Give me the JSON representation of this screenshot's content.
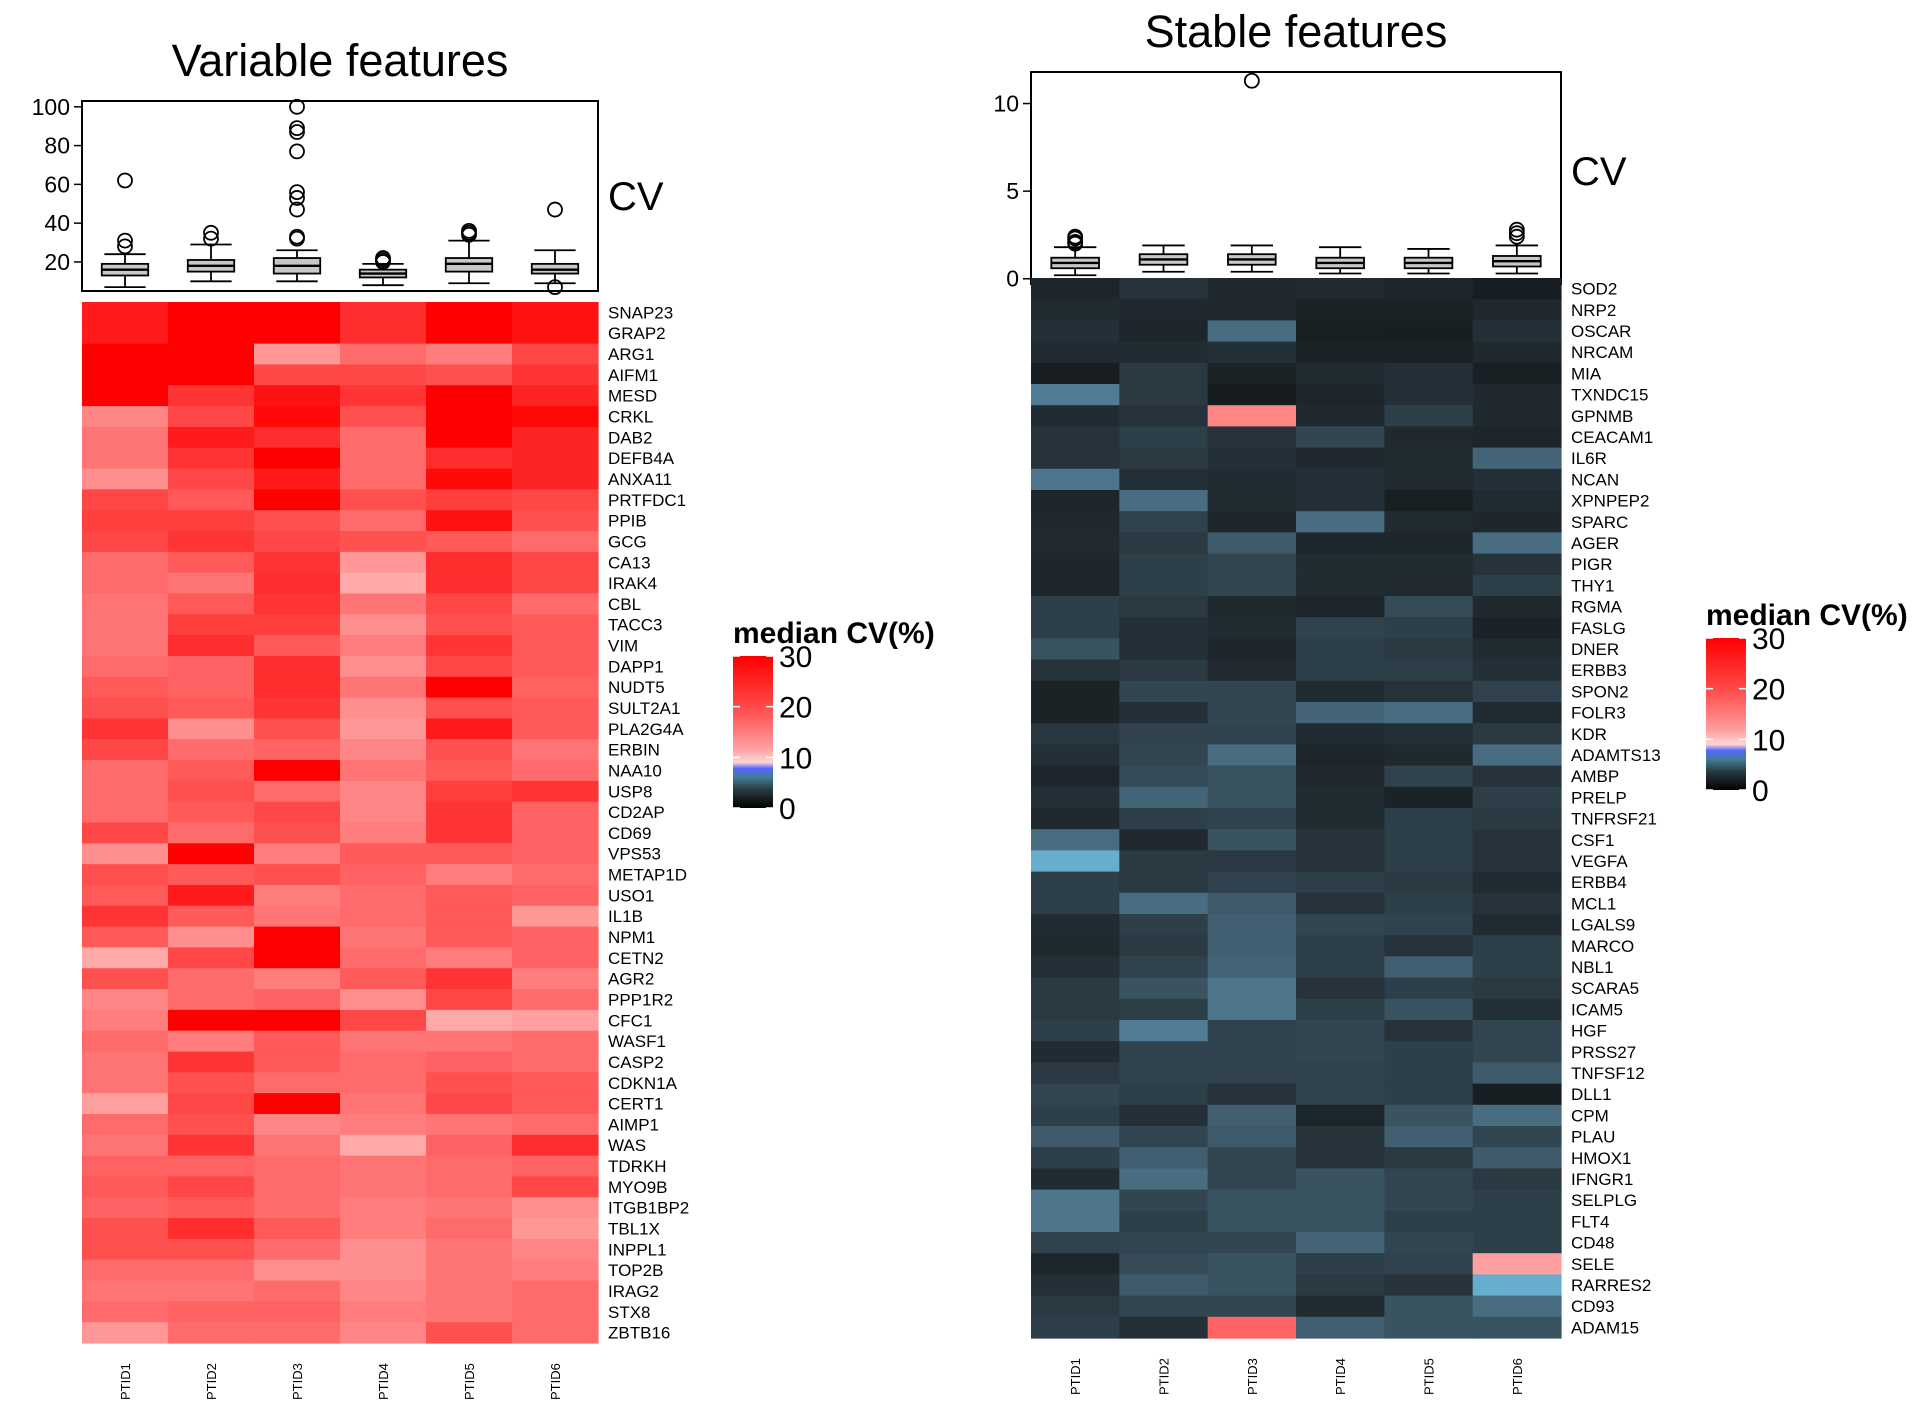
{
  "chart_data": [
    {
      "type": "heatmap",
      "title": "Variable features",
      "boxplot_label": "CV",
      "boxplot_yticks": [
        20,
        40,
        60,
        80,
        100
      ],
      "boxplot_ylim": [
        5,
        103
      ],
      "columns": [
        "PTID1",
        "PTID2",
        "PTID3",
        "PTID4",
        "PTID5",
        "PTID6"
      ],
      "rows": [
        "SNAP23",
        "GRAP2",
        "ARG1",
        "AIFM1",
        "MESD",
        "CRKL",
        "DAB2",
        "DEFB4A",
        "ANXA11",
        "PRTFDC1",
        "PPIB",
        "GCG",
        "CA13",
        "IRAK4",
        "CBL",
        "TACC3",
        "VIM",
        "DAPP1",
        "NUDT5",
        "SULT2A1",
        "PLA2G4A",
        "ERBIN",
        "NAA10",
        "USP8",
        "CD2AP",
        "CD69",
        "VPS53",
        "METAP1D",
        "USO1",
        "IL1B",
        "NPM1",
        "CETN2",
        "AGR2",
        "PPP1R2",
        "CFC1",
        "WASF1",
        "CASP2",
        "CDKN1A",
        "CERT1",
        "AIMP1",
        "WAS",
        "TDRKH",
        "MYO9B",
        "ITGB1BP2",
        "TBL1X",
        "INPPL1",
        "TOP2B",
        "IRAG2",
        "STX8",
        "ZBTB16"
      ],
      "values": [
        [
          27,
          30,
          30,
          25,
          30,
          28
        ],
        [
          27,
          30,
          30,
          25,
          30,
          28
        ],
        [
          30,
          30,
          13,
          18,
          16,
          22
        ],
        [
          30,
          30,
          22,
          22,
          21,
          24
        ],
        [
          30,
          24,
          28,
          24,
          30,
          26
        ],
        [
          15,
          22,
          29,
          21,
          30,
          29
        ],
        [
          17,
          27,
          25,
          18,
          30,
          26
        ],
        [
          17,
          24,
          30,
          18,
          25,
          26
        ],
        [
          14,
          22,
          27,
          18,
          29,
          26
        ],
        [
          22,
          20,
          30,
          21,
          23,
          22
        ],
        [
          23,
          23,
          21,
          18,
          28,
          21
        ],
        [
          22,
          24,
          22,
          21,
          20,
          18
        ],
        [
          18,
          20,
          24,
          13,
          25,
          22
        ],
        [
          18,
          17,
          25,
          11,
          25,
          22
        ],
        [
          17,
          20,
          24,
          17,
          22,
          18
        ],
        [
          17,
          23,
          23,
          14,
          21,
          20
        ],
        [
          17,
          25,
          20,
          16,
          24,
          20
        ],
        [
          18,
          19,
          25,
          14,
          22,
          20
        ],
        [
          20,
          19,
          25,
          17,
          30,
          19
        ],
        [
          21,
          20,
          24,
          14,
          21,
          20
        ],
        [
          24,
          14,
          21,
          13,
          27,
          20
        ],
        [
          22,
          18,
          19,
          15,
          21,
          17
        ],
        [
          18,
          20,
          30,
          17,
          20,
          18
        ],
        [
          18,
          21,
          18,
          15,
          23,
          24
        ],
        [
          18,
          20,
          22,
          15,
          24,
          19
        ],
        [
          22,
          18,
          21,
          16,
          24,
          19
        ],
        [
          14,
          30,
          16,
          20,
          20,
          19
        ],
        [
          21,
          20,
          21,
          19,
          16,
          18
        ],
        [
          20,
          27,
          16,
          18,
          20,
          19
        ],
        [
          24,
          20,
          17,
          18,
          20,
          13
        ],
        [
          20,
          14,
          30,
          17,
          20,
          19
        ],
        [
          11,
          22,
          30,
          18,
          16,
          19
        ],
        [
          21,
          18,
          16,
          20,
          24,
          16
        ],
        [
          15,
          18,
          19,
          14,
          22,
          18
        ],
        [
          16,
          30,
          30,
          22,
          11,
          12
        ],
        [
          18,
          16,
          20,
          17,
          17,
          18
        ],
        [
          17,
          24,
          20,
          18,
          19,
          18
        ],
        [
          17,
          21,
          18,
          18,
          21,
          20
        ],
        [
          12,
          22,
          30,
          17,
          22,
          20
        ],
        [
          18,
          21,
          15,
          16,
          17,
          18
        ],
        [
          17,
          24,
          17,
          11,
          19,
          25
        ],
        [
          19,
          19,
          18,
          17,
          18,
          19
        ],
        [
          20,
          22,
          18,
          17,
          18,
          22
        ],
        [
          19,
          20,
          18,
          16,
          17,
          14
        ],
        [
          21,
          25,
          20,
          16,
          18,
          13
        ],
        [
          21,
          21,
          18,
          14,
          17,
          15
        ],
        [
          18,
          18,
          14,
          14,
          17,
          16
        ],
        [
          17,
          17,
          18,
          15,
          17,
          18
        ],
        [
          18,
          19,
          19,
          16,
          17,
          18
        ],
        [
          13,
          18,
          18,
          15,
          21,
          18
        ]
      ],
      "boxplots": [
        {
          "min": 7,
          "q1": 13,
          "median": 16,
          "q3": 19,
          "max": 24,
          "outliers": [
            62,
            31,
            28
          ]
        },
        {
          "min": 10,
          "q1": 15,
          "median": 18,
          "q3": 21,
          "max": 29,
          "outliers": [
            35,
            32
          ]
        },
        {
          "min": 10,
          "q1": 14,
          "median": 18,
          "q3": 22,
          "max": 26,
          "outliers": [
            100,
            89,
            87,
            77,
            56,
            53,
            47,
            33,
            32
          ]
        },
        {
          "min": 8,
          "q1": 12,
          "median": 14,
          "q3": 16,
          "max": 19,
          "outliers": [
            22,
            21,
            20
          ]
        },
        {
          "min": 9,
          "q1": 15,
          "median": 19,
          "q3": 22,
          "max": 31,
          "outliers": [
            36,
            35,
            34
          ]
        },
        {
          "min": 9,
          "q1": 14,
          "median": 16,
          "q3": 19,
          "max": 26,
          "outliers": [
            47,
            7
          ]
        }
      ],
      "legend": {
        "title": "median CV(%)",
        "ticks": [
          0,
          10,
          20,
          30
        ],
        "placement": "right"
      }
    },
    {
      "type": "heatmap",
      "title": "Stable features",
      "boxplot_label": "CV",
      "boxplot_yticks": [
        0,
        5,
        10
      ],
      "boxplot_ylim": [
        -0.3,
        11.8
      ],
      "columns": [
        "PTID1",
        "PTID2",
        "PTID3",
        "PTID4",
        "PTID5",
        "PTID6"
      ],
      "rows": [
        "SOD2",
        "NRP2",
        "OSCAR",
        "NRCAM",
        "MIA",
        "TXNDC15",
        "GPNMB",
        "CEACAM1",
        "IL6R",
        "NCAN",
        "XPNPEP2",
        "SPARC",
        "AGER",
        "PIGR",
        "THY1",
        "RGMA",
        "FASLG",
        "DNER",
        "ERBB3",
        "SPON2",
        "FOLR3",
        "KDR",
        "ADAMTS13",
        "AMBP",
        "PRELP",
        "TNFRSF21",
        "CSF1",
        "VEGFA",
        "ERBB4",
        "MCL1",
        "LGALS9",
        "MARCO",
        "NBL1",
        "SCARA5",
        "ICAM5",
        "HGF",
        "PRSS27",
        "TNFSF12",
        "DLL1",
        "CPM",
        "PLAU",
        "HMOX1",
        "IFNGR1",
        "SELPLG",
        "FLT4",
        "CD48",
        "SELE",
        "RARRES2",
        "CD93",
        "ADAM15"
      ],
      "values": [
        [
          1.2,
          2.0,
          1.4,
          1.5,
          1.2,
          0.7
        ],
        [
          1.6,
          1.4,
          1.4,
          0.9,
          0.9,
          1.4
        ],
        [
          1.8,
          1.2,
          4.5,
          0.8,
          0.7,
          1.8
        ],
        [
          1.6,
          1.6,
          1.8,
          1.0,
          0.9,
          1.4
        ],
        [
          0.6,
          2.3,
          1.0,
          1.6,
          1.8,
          0.8
        ],
        [
          5.0,
          2.3,
          0.5,
          1.2,
          1.8,
          1.4
        ],
        [
          1.6,
          2.0,
          11.2,
          1.4,
          2.6,
          1.4
        ],
        [
          2.0,
          2.6,
          2.0,
          3.0,
          1.4,
          1.2
        ],
        [
          2.0,
          2.3,
          1.8,
          1.4,
          1.6,
          4.2
        ],
        [
          4.8,
          1.8,
          1.6,
          1.8,
          1.5,
          1.8
        ],
        [
          1.2,
          4.5,
          1.6,
          1.8,
          0.8,
          1.6
        ],
        [
          1.4,
          2.8,
          1.2,
          4.5,
          1.6,
          1.3
        ],
        [
          1.5,
          2.3,
          3.8,
          1.2,
          1.2,
          4.5
        ],
        [
          1.3,
          2.6,
          3.0,
          1.6,
          1.6,
          2.0
        ],
        [
          1.2,
          2.6,
          3.0,
          1.6,
          1.5,
          2.6
        ],
        [
          2.6,
          2.3,
          1.4,
          1.2,
          3.2,
          1.4
        ],
        [
          2.6,
          1.8,
          1.6,
          2.8,
          2.6,
          1.0
        ],
        [
          3.5,
          1.8,
          1.3,
          2.6,
          2.3,
          1.6
        ],
        [
          2.0,
          2.3,
          1.5,
          2.6,
          2.6,
          1.8
        ],
        [
          1.0,
          3.0,
          3.0,
          1.6,
          2.0,
          2.8
        ],
        [
          1.0,
          1.8,
          3.0,
          4.2,
          4.5,
          1.6
        ],
        [
          2.2,
          2.8,
          2.8,
          1.6,
          1.8,
          2.3
        ],
        [
          1.8,
          3.0,
          4.5,
          1.2,
          1.4,
          4.5
        ],
        [
          1.2,
          3.2,
          3.5,
          1.4,
          2.8,
          2.0
        ],
        [
          1.8,
          4.2,
          3.5,
          1.6,
          1.0,
          2.6
        ],
        [
          1.4,
          2.6,
          2.8,
          1.6,
          2.6,
          2.3
        ],
        [
          4.5,
          1.4,
          3.5,
          2.0,
          2.6,
          2.0
        ],
        [
          7.0,
          2.3,
          2.3,
          2.0,
          2.6,
          2.0
        ],
        [
          2.6,
          2.3,
          2.8,
          2.6,
          2.3,
          1.5
        ],
        [
          2.6,
          4.5,
          3.8,
          2.0,
          2.6,
          2.0
        ],
        [
          1.6,
          2.6,
          4.0,
          3.0,
          2.8,
          1.6
        ],
        [
          1.4,
          2.3,
          4.0,
          2.6,
          2.0,
          2.6
        ],
        [
          1.8,
          2.8,
          4.2,
          2.6,
          4.0,
          2.6
        ],
        [
          2.3,
          3.5,
          4.8,
          2.0,
          2.6,
          2.3
        ],
        [
          2.3,
          2.6,
          4.8,
          2.6,
          3.5,
          1.8
        ],
        [
          2.6,
          5.0,
          2.8,
          3.0,
          2.0,
          3.0
        ],
        [
          1.6,
          2.8,
          2.8,
          3.0,
          2.6,
          3.0
        ],
        [
          2.3,
          2.8,
          2.8,
          2.8,
          2.6,
          3.8
        ],
        [
          3.0,
          2.6,
          2.0,
          2.8,
          2.6,
          0.7
        ],
        [
          2.6,
          1.8,
          4.0,
          1.2,
          3.5,
          4.5
        ],
        [
          3.8,
          3.0,
          3.8,
          2.0,
          4.0,
          3.0
        ],
        [
          2.6,
          4.0,
          3.0,
          2.0,
          2.3,
          3.8
        ],
        [
          1.6,
          4.5,
          3.0,
          3.5,
          3.0,
          2.3
        ],
        [
          4.8,
          3.0,
          3.5,
          3.5,
          3.0,
          2.6
        ],
        [
          4.8,
          2.6,
          3.5,
          3.5,
          2.6,
          2.6
        ],
        [
          2.8,
          3.0,
          3.0,
          4.2,
          3.0,
          2.6
        ],
        [
          1.2,
          3.2,
          3.5,
          2.6,
          2.8,
          8.0
        ],
        [
          1.8,
          3.8,
          3.5,
          2.3,
          2.0,
          7.0
        ],
        [
          2.3,
          3.0,
          3.0,
          1.6,
          3.5,
          4.5
        ],
        [
          2.6,
          1.8,
          15.0,
          4.0,
          3.5,
          3.5
        ]
      ],
      "boxplots": [
        {
          "min": 0.2,
          "q1": 0.6,
          "median": 0.9,
          "q3": 1.2,
          "max": 1.8,
          "outliers": [
            2.4,
            2.3,
            2.1,
            2.0
          ]
        },
        {
          "min": 0.4,
          "q1": 0.8,
          "median": 1.1,
          "q3": 1.4,
          "max": 1.9,
          "outliers": []
        },
        {
          "min": 0.4,
          "q1": 0.8,
          "median": 1.1,
          "q3": 1.4,
          "max": 1.9,
          "outliers": [
            11.3
          ]
        },
        {
          "min": 0.3,
          "q1": 0.6,
          "median": 0.9,
          "q3": 1.2,
          "max": 1.8,
          "outliers": []
        },
        {
          "min": 0.3,
          "q1": 0.6,
          "median": 0.9,
          "q3": 1.2,
          "max": 1.7,
          "outliers": []
        },
        {
          "min": 0.3,
          "q1": 0.7,
          "median": 1.0,
          "q3": 1.3,
          "max": 1.9,
          "outliers": [
            2.8,
            2.6,
            2.4
          ]
        }
      ],
      "legend": {
        "title": "median CV(%)",
        "ticks": [
          0,
          10,
          20,
          30
        ],
        "placement": "right"
      }
    }
  ]
}
